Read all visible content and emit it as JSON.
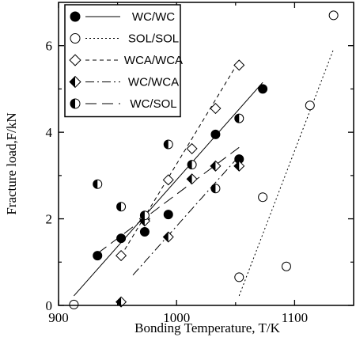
{
  "chart_data": {
    "type": "scatter",
    "xlabel": "Bonding Temperature, T/K",
    "ylabel": "Fracture load,F/kN",
    "xlim": [
      900,
      1150
    ],
    "ylim": [
      0,
      7
    ],
    "xticks": [
      900,
      1000,
      1100
    ],
    "xticks_minor": [
      950,
      1050
    ],
    "yticks": [
      0,
      2,
      4,
      6
    ],
    "legend_position": "top-left",
    "series": [
      {
        "name": "WC/WC",
        "marker": "filled-circle",
        "line_style": "solid",
        "points": [
          [
            933,
            1.15
          ],
          [
            953,
            1.55
          ],
          [
            973,
            1.7
          ],
          [
            993,
            2.1
          ],
          [
            1033,
            3.95
          ],
          [
            1053,
            3.38
          ],
          [
            1073,
            5.0
          ]
        ],
        "fit": [
          [
            913,
            0.22
          ],
          [
            1073,
            5.15
          ]
        ]
      },
      {
        "name": "SOL/SOL",
        "marker": "open-circle",
        "line_style": "dotted",
        "points": [
          [
            913,
            0.02
          ],
          [
            1053,
            0.65
          ],
          [
            1073,
            2.5
          ],
          [
            1093,
            0.9
          ],
          [
            1113,
            4.62
          ],
          [
            1133,
            6.7
          ]
        ],
        "fit": [
          [
            1053,
            0.22
          ],
          [
            1133,
            5.92
          ]
        ]
      },
      {
        "name": "WCA/WCA",
        "marker": "open-diamond",
        "line_style": "dashed",
        "points": [
          [
            953,
            1.15
          ],
          [
            973,
            2.0
          ],
          [
            993,
            2.9
          ],
          [
            1013,
            3.62
          ],
          [
            1033,
            4.55
          ],
          [
            1053,
            5.55
          ]
        ],
        "fit": [
          [
            953,
            1.15
          ],
          [
            1053,
            5.65
          ]
        ]
      },
      {
        "name": "WC/WCA",
        "marker": "half-filled-diamond",
        "line_style": "dash-dot",
        "points": [
          [
            953,
            0.08
          ],
          [
            973,
            1.95
          ],
          [
            993,
            1.58
          ],
          [
            1013,
            2.92
          ],
          [
            1033,
            3.22
          ],
          [
            1053,
            3.22
          ]
        ],
        "fit": [
          [
            963,
            0.7
          ],
          [
            1053,
            3.45
          ]
        ]
      },
      {
        "name": "WC/SOL",
        "marker": "half-filled-circle",
        "line_style": "long-dash",
        "points": [
          [
            933,
            2.8
          ],
          [
            953,
            2.28
          ],
          [
            973,
            2.08
          ],
          [
            993,
            3.72
          ],
          [
            1013,
            3.25
          ],
          [
            1033,
            2.7
          ],
          [
            1053,
            4.32
          ]
        ],
        "fit": [
          [
            933,
            1.2
          ],
          [
            1053,
            3.65
          ]
        ]
      }
    ]
  }
}
